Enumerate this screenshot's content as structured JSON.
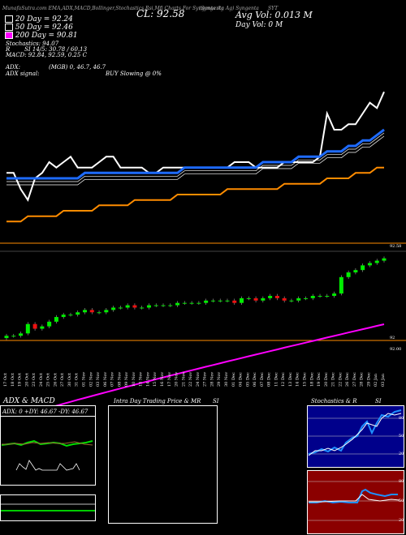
{
  "header": {
    "strip": "(Syngenta Ag) Syngenta",
    "ticker_label": "SYT",
    "strip_overlay": "MunafaSutra.com EMA,ADX,MACD,Bollinger,Stochastics,Rsi,Mfi Charts For Syngenta Ag",
    "cl_label": "CL: 92.58",
    "avg_vol": "Avg Vol: 0.013 M",
    "day_vol": "Day Vol: 0  M"
  },
  "ma_legend": [
    {
      "label": "20  Day = 92.24",
      "color": "#ffffff"
    },
    {
      "label": "50  Day = 92.46",
      "color": "#ffffff"
    },
    {
      "label": "200  Day = 90.81",
      "color": "#ff00ff"
    }
  ],
  "stoch_text": {
    "line1": "Stochastics: 94.07",
    "line2_prefix": "R",
    "line2_value": "SI 14/5: 30.78 / 60.13",
    "line3": "MACD: 92.84,  92.59,  0.25 C"
  },
  "adx_text": {
    "line1_label": "ADX:",
    "line1_value": "(MGB) 0, 46.7, 46.7",
    "line2_label": "ADX  signal:",
    "line2_value": "BUY Slowing @ 0%"
  },
  "price_labels": {
    "top_right": "92.58",
    "bottom_right": "92",
    "bottom_right2": "92.00"
  },
  "bottom_panels": {
    "adx_title": "ADX  & MACD",
    "adx_readout": "ADX: 0  +DY: 46.67  -DY: 46.67",
    "intraday_title": "Intra  Day  Trading Price  & MR",
    "intraday_si": "SI",
    "stoch_title": "Stochastics & R",
    "stoch_si": "SI",
    "stoch_ticks": [
      "80",
      "50",
      "20"
    ],
    "rsi_ticks": [
      "80",
      "50",
      "20"
    ]
  },
  "chart_data": {
    "type": "line",
    "x": [
      "17 Oct",
      "18 Oct",
      "19 Oct",
      "20 Oct",
      "23 Oct",
      "24 Oct",
      "25 Oct",
      "26 Oct",
      "27 Oct",
      "30 Oct",
      "31 Oct",
      "01 Nov",
      "02 Nov",
      "03 Nov",
      "06 Nov",
      "07 Nov",
      "08 Nov",
      "09 Nov",
      "10 Nov",
      "13 Nov",
      "14 Nov",
      "15 Nov",
      "16 Nov",
      "17 Nov",
      "20 Nov",
      "21 Nov",
      "22 Nov",
      "24 Nov",
      "27 Nov",
      "28 Nov",
      "29 Nov",
      "30 Nov",
      "01 Dec",
      "04 Dec",
      "05 Dec",
      "06 Dec",
      "07 Dec",
      "08 Dec",
      "11 Dec",
      "12 Dec",
      "13 Dec",
      "14 Dec",
      "15 Dec",
      "18 Dec",
      "19 Dec",
      "20 Dec",
      "21 Dec",
      "22 Dec",
      "26 Dec",
      "27 Dec",
      "28 Dec",
      "29 Dec",
      "02 Jan",
      "03 Jan"
    ],
    "series": [
      {
        "name": "",
        "color": "#ffffff",
        "values": [
          92.55,
          92.55,
          92.52,
          92.5,
          92.54,
          92.55,
          92.57,
          92.56,
          92.57,
          92.58,
          92.56,
          92.56,
          92.56,
          92.57,
          92.58,
          92.58,
          92.56,
          92.56,
          92.56,
          92.56,
          92.55,
          92.55,
          92.56,
          92.56,
          92.56,
          92.56,
          92.56,
          92.56,
          92.56,
          92.56,
          92.56,
          92.56,
          92.57,
          92.57,
          92.57,
          92.56,
          92.56,
          92.56,
          92.56,
          92.57,
          92.57,
          92.57,
          92.57,
          92.57,
          92.58,
          92.66,
          92.63,
          92.63,
          92.64,
          92.64,
          92.66,
          92.68,
          92.67,
          92.7
        ]
      },
      {
        "name": "",
        "color": "#1e6bff",
        "values": [
          92.54,
          92.54,
          92.54,
          92.54,
          92.54,
          92.54,
          92.54,
          92.54,
          92.54,
          92.54,
          92.54,
          92.55,
          92.55,
          92.55,
          92.55,
          92.55,
          92.55,
          92.55,
          92.55,
          92.55,
          92.55,
          92.55,
          92.55,
          92.55,
          92.55,
          92.56,
          92.56,
          92.56,
          92.56,
          92.56,
          92.56,
          92.56,
          92.56,
          92.56,
          92.56,
          92.56,
          92.57,
          92.57,
          92.57,
          92.57,
          92.57,
          92.58,
          92.58,
          92.58,
          92.58,
          92.59,
          92.59,
          92.59,
          92.6,
          92.6,
          92.61,
          92.61,
          92.62,
          92.63
        ]
      },
      {
        "name": "",
        "color": "#ff8c00",
        "values": [
          92.46,
          92.46,
          92.46,
          92.47,
          92.47,
          92.47,
          92.47,
          92.47,
          92.48,
          92.48,
          92.48,
          92.48,
          92.48,
          92.49,
          92.49,
          92.49,
          92.49,
          92.49,
          92.5,
          92.5,
          92.5,
          92.5,
          92.5,
          92.5,
          92.51,
          92.51,
          92.51,
          92.51,
          92.51,
          92.51,
          92.51,
          92.52,
          92.52,
          92.52,
          92.52,
          92.52,
          92.52,
          92.52,
          92.52,
          92.53,
          92.53,
          92.53,
          92.53,
          92.53,
          92.53,
          92.54,
          92.54,
          92.54,
          92.54,
          92.55,
          92.55,
          92.55,
          92.56,
          92.56
        ]
      }
    ],
    "candles_close": [
      92.0,
      92.0,
      92.01,
      92.05,
      92.03,
      92.04,
      92.06,
      92.08,
      92.09,
      92.09,
      92.1,
      92.11,
      92.1,
      92.1,
      92.11,
      92.12,
      92.12,
      92.13,
      92.12,
      92.12,
      92.13,
      92.13,
      92.13,
      92.13,
      92.14,
      92.14,
      92.14,
      92.14,
      92.15,
      92.15,
      92.15,
      92.15,
      92.14,
      92.16,
      92.16,
      92.15,
      92.16,
      92.17,
      92.16,
      92.15,
      92.15,
      92.16,
      92.16,
      92.17,
      92.17,
      92.17,
      92.18,
      92.25,
      92.27,
      92.28,
      92.3,
      92.31,
      92.32,
      92.33
    ]
  }
}
